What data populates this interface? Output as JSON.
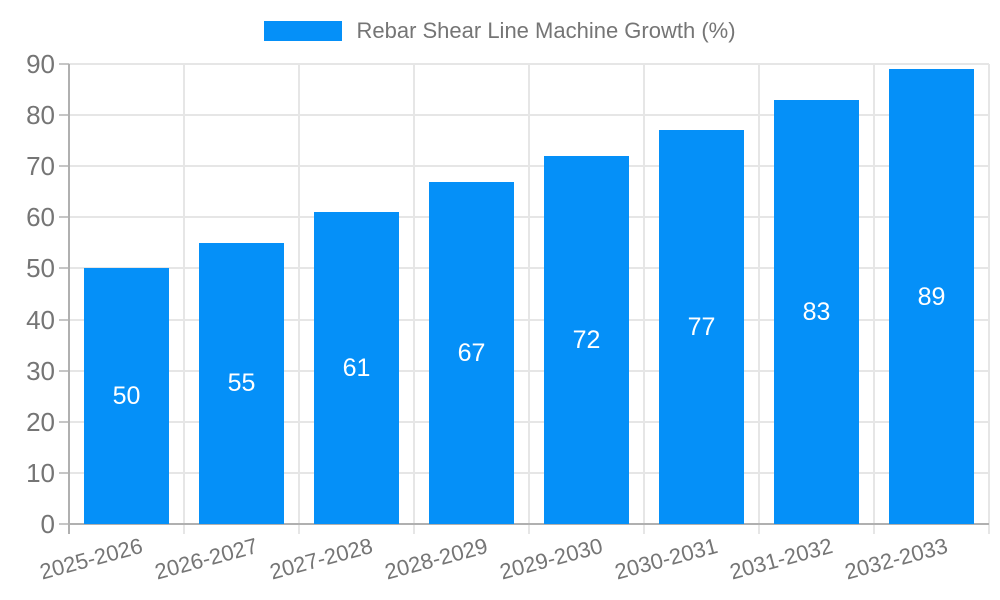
{
  "chart_data": {
    "type": "bar",
    "legend_label": "Rebar Shear Line Machine Growth (%)",
    "categories": [
      "2025-2026",
      "2026-2027",
      "2027-2028",
      "2028-2029",
      "2029-2030",
      "2030-2031",
      "2031-2032",
      "2032-2033"
    ],
    "values": [
      50,
      55,
      61,
      67,
      72,
      77,
      83,
      89
    ],
    "yticks": [
      0,
      10,
      20,
      30,
      40,
      50,
      60,
      70,
      80,
      90
    ],
    "ylim": [
      0,
      90
    ],
    "xlabel": "",
    "ylabel": "",
    "grid": "on",
    "legend_position": "top-center",
    "colors": {
      "bar": "#0590f8",
      "bar_value_text": "#ffffff",
      "axis_text": "#757575",
      "gridline": "#e6e6e6",
      "axis_line": "#b0b0b0",
      "tick_line": "#c6c6c6",
      "background": "#ffffff"
    }
  }
}
